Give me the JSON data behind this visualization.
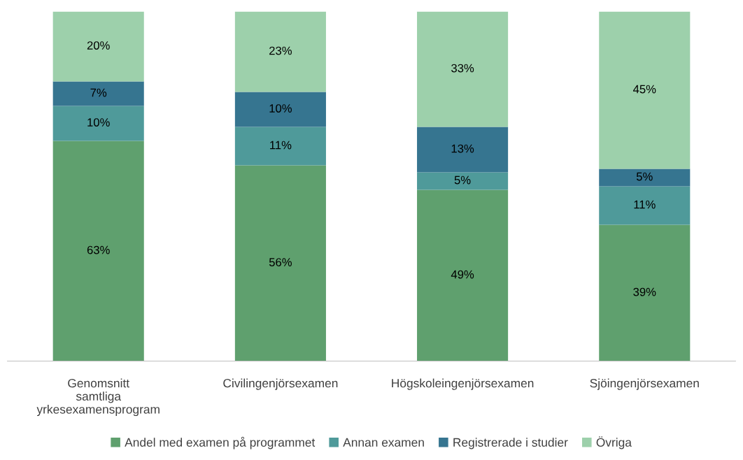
{
  "chart_data": {
    "type": "bar",
    "stacked": true,
    "legend": "bottom",
    "grid": false,
    "tick_labels": "x",
    "categories": [
      "Genomsnitt\nsamtliga\nyrkesexamensprogram",
      "Civilingenjörsexamen",
      "Högskoleingenjörsexamen",
      "Sjöingenjörsexamen"
    ],
    "series": [
      {
        "name": "Andel med examen på programmet",
        "color": "#5fa06e",
        "values": [
          63,
          56,
          49,
          39
        ],
        "value_labels": [
          "63%",
          "56%",
          "49%",
          "39%"
        ]
      },
      {
        "name": "Annan examen",
        "color": "#4f9a9a",
        "values": [
          10,
          11,
          5,
          11
        ],
        "value_labels": [
          "10%",
          "11%",
          "5%",
          "11%"
        ]
      },
      {
        "name": "Registrerade i studier",
        "color": "#367590",
        "values": [
          7,
          10,
          13,
          5
        ],
        "value_labels": [
          "7%",
          "10%",
          "13%",
          "5%"
        ]
      },
      {
        "name": "Övriga",
        "color": "#9dd0ab",
        "values": [
          20,
          23,
          33,
          45
        ],
        "value_labels": [
          "20%",
          "23%",
          "33%",
          "45%"
        ]
      }
    ]
  }
}
